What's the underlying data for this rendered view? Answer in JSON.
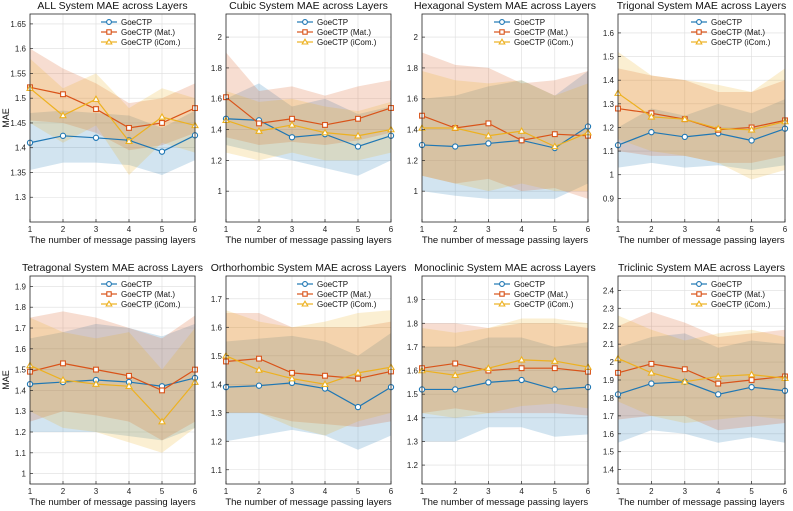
{
  "series_names": [
    "GoeCTP",
    "GoeCTP (Mat.)",
    "GoeCTP (iCom.)"
  ],
  "series_colors": [
    "#1f77b4",
    "#d95319",
    "#edb120"
  ],
  "chart_data": [
    {
      "type": "line",
      "title": "ALL System MAE across Layers",
      "xlabel": "The number of message passing layers",
      "ylabel": "MAE",
      "x": [
        1,
        2,
        3,
        4,
        5,
        6
      ],
      "xticks": [
        "1",
        "2",
        "3",
        "4",
        "5",
        "6"
      ],
      "xlim": [
        1,
        6
      ],
      "ylim": [
        1.25,
        1.67
      ],
      "yticks": [
        "1.3",
        "1.35",
        "1.4",
        "1.45",
        "1.5",
        "1.55",
        "1.6",
        "1.65"
      ],
      "ytick_values": [
        1.3,
        1.35,
        1.4,
        1.45,
        1.5,
        1.55,
        1.6,
        1.65
      ],
      "series": [
        {
          "name": "GoeCTP",
          "values": [
            1.41,
            1.424,
            1.42,
            1.415,
            1.392,
            1.425
          ],
          "lower": [
            1.355,
            1.37,
            1.37,
            1.365,
            1.345,
            1.375
          ],
          "upper": [
            1.47,
            1.475,
            1.47,
            1.465,
            1.44,
            1.475
          ]
        },
        {
          "name": "GoeCTP (Mat.)",
          "values": [
            1.522,
            1.508,
            1.478,
            1.44,
            1.45,
            1.48
          ],
          "lower": [
            1.455,
            1.45,
            1.43,
            1.395,
            1.405,
            1.43
          ],
          "upper": [
            1.6,
            1.56,
            1.53,
            1.49,
            1.5,
            1.53
          ]
        },
        {
          "name": "GoeCTP (iCom.)",
          "values": [
            1.52,
            1.465,
            1.498,
            1.413,
            1.462,
            1.445
          ],
          "lower": [
            1.45,
            1.41,
            1.445,
            1.345,
            1.41,
            1.39
          ],
          "upper": [
            1.58,
            1.52,
            1.55,
            1.48,
            1.52,
            1.5
          ]
        }
      ]
    },
    {
      "type": "line",
      "title": "Cubic System MAE across Layers",
      "xlabel": "The number of message passing layers",
      "ylabel": "",
      "x": [
        1,
        2,
        3,
        4,
        5,
        6
      ],
      "xticks": [
        "1",
        "2",
        "3",
        "4",
        "5",
        "6"
      ],
      "xlim": [
        1,
        6
      ],
      "ylim": [
        0.8,
        2.15
      ],
      "yticks": [
        "1",
        "1.2",
        "1.4",
        "1.6",
        "1.8",
        "2"
      ],
      "ytick_values": [
        1,
        1.2,
        1.4,
        1.6,
        1.8,
        2
      ],
      "series": [
        {
          "name": "GoeCTP",
          "values": [
            1.47,
            1.46,
            1.35,
            1.37,
            1.29,
            1.36
          ],
          "lower": [
            1.3,
            1.25,
            1.2,
            1.15,
            1.1,
            1.2
          ],
          "upper": [
            1.6,
            1.7,
            1.55,
            1.6,
            1.5,
            1.55
          ]
        },
        {
          "name": "GoeCTP (Mat.)",
          "values": [
            1.61,
            1.44,
            1.47,
            1.43,
            1.47,
            1.54
          ],
          "lower": [
            1.35,
            1.3,
            1.32,
            1.3,
            1.33,
            1.38
          ],
          "upper": [
            1.9,
            1.65,
            1.68,
            1.62,
            1.68,
            1.72
          ]
        },
        {
          "name": "GoeCTP (iCom.)",
          "values": [
            1.46,
            1.39,
            1.43,
            1.38,
            1.36,
            1.4
          ],
          "lower": [
            1.25,
            1.2,
            1.25,
            1.2,
            1.2,
            1.25
          ],
          "upper": [
            1.65,
            1.58,
            1.6,
            1.55,
            1.52,
            1.58
          ]
        }
      ]
    },
    {
      "type": "line",
      "title": "Hexagonal System MAE across Layers",
      "xlabel": "The number of message passing layers",
      "ylabel": "",
      "x": [
        1,
        2,
        3,
        4,
        5,
        6
      ],
      "xticks": [
        "1",
        "2",
        "3",
        "4",
        "5",
        "6"
      ],
      "xlim": [
        1,
        6
      ],
      "ylim": [
        0.8,
        2.15
      ],
      "yticks": [
        "1",
        "1.2",
        "1.4",
        "1.6",
        "1.8",
        "2"
      ],
      "ytick_values": [
        1,
        1.2,
        1.4,
        1.6,
        1.8,
        2
      ],
      "series": [
        {
          "name": "GoeCTP",
          "values": [
            1.3,
            1.29,
            1.31,
            1.33,
            1.28,
            1.42
          ],
          "lower": [
            1.0,
            0.97,
            0.95,
            0.95,
            0.95,
            1.05
          ],
          "upper": [
            1.6,
            1.62,
            1.68,
            1.72,
            1.62,
            1.78
          ]
        },
        {
          "name": "GoeCTP (Mat.)",
          "values": [
            1.49,
            1.41,
            1.44,
            1.33,
            1.37,
            1.36
          ],
          "lower": [
            1.1,
            1.05,
            1.08,
            1.0,
            1.02,
            0.95
          ],
          "upper": [
            1.9,
            1.82,
            1.8,
            1.7,
            1.72,
            1.78
          ]
        },
        {
          "name": "GoeCTP (iCom.)",
          "values": [
            1.41,
            1.41,
            1.36,
            1.39,
            1.29,
            1.38
          ],
          "lower": [
            1.1,
            1.05,
            1.0,
            1.05,
            1.0,
            1.0
          ],
          "upper": [
            1.78,
            1.72,
            1.7,
            1.72,
            1.62,
            1.7
          ]
        }
      ]
    },
    {
      "type": "line",
      "title": "Trigonal System MAE across Layers",
      "xlabel": "The number of message passing layers",
      "ylabel": "",
      "x": [
        1,
        2,
        3,
        4,
        5,
        6
      ],
      "xticks": [
        "1",
        "2",
        "3",
        "4",
        "5",
        "6"
      ],
      "xlim": [
        1,
        6
      ],
      "ylim": [
        0.8,
        1.68
      ],
      "yticks": [
        "0.9",
        "1",
        "1.1",
        "1.2",
        "1.3",
        "1.4",
        "1.5",
        "1.6"
      ],
      "ytick_values": [
        0.9,
        1,
        1.1,
        1.2,
        1.3,
        1.4,
        1.5,
        1.6
      ],
      "series": [
        {
          "name": "GoeCTP",
          "values": [
            1.125,
            1.18,
            1.16,
            1.175,
            1.145,
            1.195
          ],
          "lower": [
            1.03,
            1.05,
            1.03,
            1.04,
            1.02,
            1.04
          ],
          "upper": [
            1.2,
            1.28,
            1.25,
            1.3,
            1.26,
            1.32
          ]
        },
        {
          "name": "GoeCTP (Mat.)",
          "values": [
            1.28,
            1.26,
            1.235,
            1.19,
            1.2,
            1.23
          ],
          "lower": [
            1.1,
            1.08,
            1.08,
            1.05,
            1.05,
            1.08
          ],
          "upper": [
            1.45,
            1.42,
            1.4,
            1.35,
            1.35,
            1.4
          ]
        },
        {
          "name": "GoeCTP (iCom.)",
          "values": [
            1.345,
            1.245,
            1.235,
            1.195,
            1.19,
            1.225
          ],
          "lower": [
            1.15,
            1.1,
            1.08,
            1.05,
            0.98,
            1.02
          ],
          "upper": [
            1.52,
            1.42,
            1.4,
            1.38,
            1.35,
            1.45
          ]
        }
      ]
    },
    {
      "type": "line",
      "title": "Tetragonal System MAE across Layers",
      "xlabel": "The number of message passing layers",
      "ylabel": "MAE",
      "x": [
        1,
        2,
        3,
        4,
        5,
        6
      ],
      "xticks": [
        "1",
        "2",
        "3",
        "4",
        "5",
        "6"
      ],
      "xlim": [
        1,
        6
      ],
      "ylim": [
        0.95,
        1.95
      ],
      "yticks": [
        "1",
        "1.1",
        "1.2",
        "1.3",
        "1.4",
        "1.5",
        "1.6",
        "1.7",
        "1.8",
        "1.9"
      ],
      "ytick_values": [
        1,
        1.1,
        1.2,
        1.3,
        1.4,
        1.5,
        1.6,
        1.7,
        1.8,
        1.9
      ],
      "series": [
        {
          "name": "GoeCTP",
          "values": [
            1.43,
            1.44,
            1.45,
            1.44,
            1.42,
            1.46
          ],
          "lower": [
            1.2,
            1.2,
            1.2,
            1.18,
            1.16,
            1.22
          ],
          "upper": [
            1.65,
            1.68,
            1.72,
            1.7,
            1.66,
            1.72
          ]
        },
        {
          "name": "GoeCTP (Mat.)",
          "values": [
            1.49,
            1.53,
            1.5,
            1.47,
            1.4,
            1.5
          ],
          "lower": [
            1.25,
            1.3,
            1.28,
            1.25,
            1.16,
            1.25
          ],
          "upper": [
            1.75,
            1.78,
            1.75,
            1.7,
            1.65,
            1.76
          ]
        },
        {
          "name": "GoeCTP (iCom.)",
          "values": [
            1.52,
            1.45,
            1.43,
            1.42,
            1.25,
            1.44
          ],
          "lower": [
            1.3,
            1.22,
            1.2,
            1.15,
            1.1,
            1.22
          ],
          "upper": [
            1.75,
            1.68,
            1.65,
            1.68,
            1.5,
            1.7
          ]
        }
      ]
    },
    {
      "type": "line",
      "title": "Orthorhombic System MAE across Layers",
      "xlabel": "The number of message passing layers",
      "ylabel": "",
      "x": [
        1,
        2,
        3,
        4,
        5,
        6
      ],
      "xticks": [
        "1",
        "2",
        "3",
        "4",
        "5",
        "6"
      ],
      "xlim": [
        1,
        6
      ],
      "ylim": [
        1.05,
        1.78
      ],
      "yticks": [
        "1.1",
        "1.2",
        "1.3",
        "1.4",
        "1.5",
        "1.6",
        "1.7"
      ],
      "ytick_values": [
        1.1,
        1.2,
        1.3,
        1.4,
        1.5,
        1.6,
        1.7
      ],
      "series": [
        {
          "name": "GoeCTP",
          "values": [
            1.39,
            1.395,
            1.405,
            1.385,
            1.32,
            1.39
          ],
          "lower": [
            1.2,
            1.22,
            1.24,
            1.22,
            1.17,
            1.22
          ],
          "upper": [
            1.55,
            1.56,
            1.57,
            1.55,
            1.5,
            1.58
          ]
        },
        {
          "name": "GoeCTP (Mat.)",
          "values": [
            1.48,
            1.49,
            1.44,
            1.43,
            1.42,
            1.445
          ],
          "lower": [
            1.3,
            1.3,
            1.27,
            1.26,
            1.25,
            1.27
          ],
          "upper": [
            1.65,
            1.65,
            1.6,
            1.6,
            1.6,
            1.62
          ]
        },
        {
          "name": "GoeCTP (iCom.)",
          "values": [
            1.5,
            1.45,
            1.42,
            1.4,
            1.44,
            1.46
          ],
          "lower": [
            1.3,
            1.3,
            1.25,
            1.22,
            1.27,
            1.3
          ],
          "upper": [
            1.66,
            1.62,
            1.6,
            1.62,
            1.65,
            1.66
          ]
        }
      ]
    },
    {
      "type": "line",
      "title": "Monoclinic System MAE across Layers",
      "xlabel": "The number of message passing layers",
      "ylabel": "",
      "x": [
        1,
        2,
        3,
        4,
        5,
        6
      ],
      "xticks": [
        "1",
        "2",
        "3",
        "4",
        "5",
        "6"
      ],
      "xlim": [
        1,
        6
      ],
      "ylim": [
        1.12,
        2.0
      ],
      "yticks": [
        "1.2",
        "1.3",
        "1.4",
        "1.5",
        "1.6",
        "1.7",
        "1.8",
        "1.9"
      ],
      "ytick_values": [
        1.2,
        1.3,
        1.4,
        1.5,
        1.6,
        1.7,
        1.8,
        1.9
      ],
      "series": [
        {
          "name": "GoeCTP",
          "values": [
            1.52,
            1.52,
            1.55,
            1.56,
            1.52,
            1.53
          ],
          "lower": [
            1.3,
            1.3,
            1.36,
            1.36,
            1.32,
            1.33
          ],
          "upper": [
            1.7,
            1.7,
            1.74,
            1.74,
            1.7,
            1.72
          ]
        },
        {
          "name": "GoeCTP (Mat.)",
          "values": [
            1.61,
            1.63,
            1.6,
            1.61,
            1.61,
            1.595
          ],
          "lower": [
            1.42,
            1.44,
            1.42,
            1.42,
            1.42,
            1.41
          ],
          "upper": [
            1.8,
            1.8,
            1.78,
            1.8,
            1.8,
            1.78
          ]
        },
        {
          "name": "GoeCTP (iCom.)",
          "values": [
            1.6,
            1.58,
            1.61,
            1.645,
            1.64,
            1.615
          ],
          "lower": [
            1.42,
            1.4,
            1.42,
            1.45,
            1.46,
            1.44
          ],
          "upper": [
            1.78,
            1.76,
            1.78,
            1.82,
            1.82,
            1.8
          ]
        }
      ]
    },
    {
      "type": "line",
      "title": "Triclinic System MAE across Layers",
      "xlabel": "The number of message passing layers",
      "ylabel": "",
      "x": [
        1,
        2,
        3,
        4,
        5,
        6
      ],
      "xticks": [
        "1",
        "2",
        "3",
        "4",
        "5",
        "6"
      ],
      "xlim": [
        1,
        6
      ],
      "ylim": [
        1.32,
        2.48
      ],
      "yticks": [
        "1.4",
        "1.5",
        "1.6",
        "1.7",
        "1.8",
        "1.9",
        "2",
        "2.1",
        "2.2",
        "2.3",
        "2.4"
      ],
      "ytick_values": [
        1.4,
        1.5,
        1.6,
        1.7,
        1.8,
        1.9,
        2,
        2.1,
        2.2,
        2.3,
        2.4
      ],
      "series": [
        {
          "name": "GoeCTP",
          "values": [
            1.82,
            1.88,
            1.89,
            1.82,
            1.86,
            1.84
          ],
          "lower": [
            1.55,
            1.62,
            1.6,
            1.55,
            1.58,
            1.55
          ],
          "upper": [
            2.08,
            2.14,
            2.16,
            2.08,
            2.12,
            2.1
          ]
        },
        {
          "name": "GoeCTP (Mat.)",
          "values": [
            1.94,
            1.99,
            1.96,
            1.88,
            1.9,
            1.92
          ],
          "lower": [
            1.68,
            1.7,
            1.7,
            1.62,
            1.64,
            1.66
          ],
          "upper": [
            2.2,
            2.28,
            2.22,
            2.14,
            2.16,
            2.18
          ]
        },
        {
          "name": "GoeCTP (iCom.)",
          "values": [
            2.02,
            1.94,
            1.89,
            1.92,
            1.93,
            1.91
          ],
          "lower": [
            1.78,
            1.7,
            1.66,
            1.68,
            1.7,
            1.68
          ],
          "upper": [
            2.26,
            2.18,
            2.12,
            2.16,
            2.18,
            2.14
          ]
        }
      ]
    }
  ]
}
